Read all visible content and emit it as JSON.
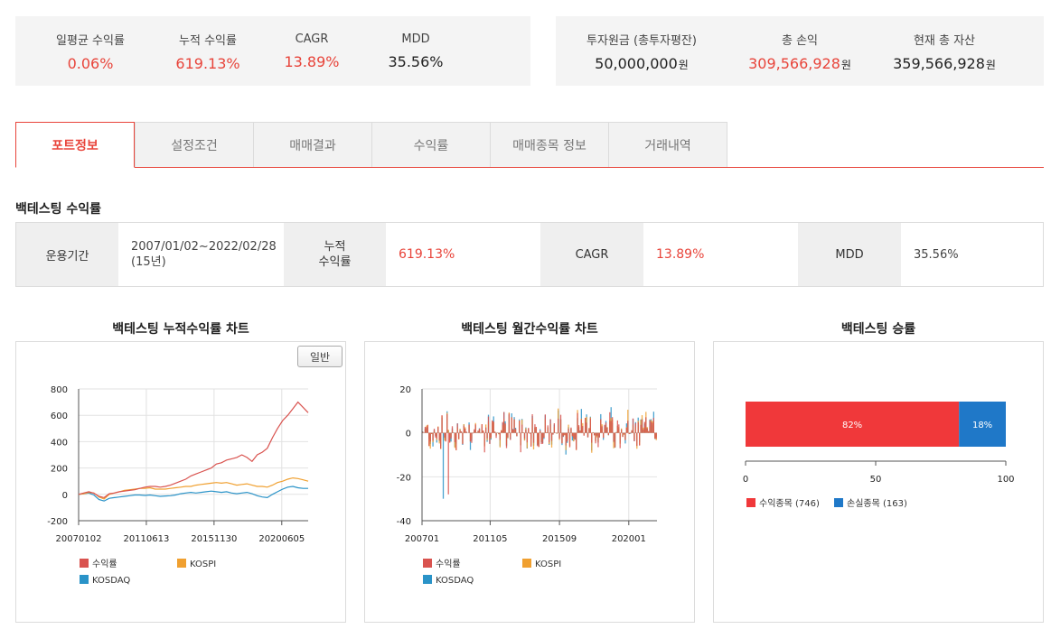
{
  "summary_left": [
    {
      "label": "일평균 수익률",
      "value": "0.06%",
      "red": true
    },
    {
      "label": "누적 수익률",
      "value": "619.13%",
      "red": true
    },
    {
      "label": "CAGR",
      "value": "13.89%",
      "red": true
    },
    {
      "label": "MDD",
      "value": "35.56%",
      "red": false
    }
  ],
  "summary_right": [
    {
      "label": "투자원금 (총투자평잔)",
      "value": "50,000,000",
      "unit": "원",
      "red": false
    },
    {
      "label": "총 손익",
      "value": "309,566,928",
      "unit": "원",
      "red": true
    },
    {
      "label": "현재 총 자산",
      "value": "359,566,928",
      "unit": "원",
      "red": false
    }
  ],
  "tabs": [
    "포트정보",
    "설정조건",
    "매매결과",
    "수익률",
    "매매종목 정보",
    "거래내역"
  ],
  "active_tab": 0,
  "section": {
    "title": "백테스팅 수익률"
  },
  "backtest_table": {
    "period_label": "운용기간",
    "period_value_line1": "2007/01/02~2022/02/28",
    "period_value_line2": "(15년)",
    "cum_label_line1": "누적",
    "cum_label_line2": "수익률",
    "cum_value": "619.13%",
    "cagr_label": "CAGR",
    "cagr_value": "13.89%",
    "mdd_label": "MDD",
    "mdd_value": "35.56%"
  },
  "colors": {
    "accent": "#e8443a",
    "returns": "#d9534f",
    "kospi": "#f0a030",
    "kosdaq": "#2a93c8",
    "win": "#f0383a",
    "loss": "#1f78c8"
  },
  "charts": [
    {
      "title": "백테스팅 누적수익률 차트",
      "button": "일반",
      "chart_data": {
        "type": "line",
        "yticks": [
          800,
          600,
          400,
          200,
          0,
          -200
        ],
        "ylim": [
          -200,
          800
        ],
        "xticks": [
          "20070102",
          "20110613",
          "20151130",
          "20200605"
        ],
        "xtick_pos": [
          0,
          0.295,
          0.59,
          0.885
        ],
        "series": [
          {
            "name": "수익률",
            "color": "#d9534f",
            "values": [
              0,
              10,
              20,
              8,
              -15,
              -25,
              5,
              10,
              20,
              25,
              30,
              35,
              45,
              55,
              60,
              60,
              55,
              60,
              70,
              85,
              100,
              115,
              140,
              155,
              170,
              185,
              200,
              230,
              240,
              260,
              270,
              280,
              300,
              280,
              250,
              300,
              320,
              350,
              430,
              500,
              560,
              600,
              650,
              700,
              660,
              620
            ]
          },
          {
            "name": "KOSPI",
            "color": "#f0a030",
            "values": [
              0,
              5,
              15,
              10,
              -20,
              -35,
              0,
              10,
              20,
              30,
              35,
              40,
              45,
              45,
              50,
              40,
              40,
              40,
              45,
              50,
              55,
              60,
              60,
              70,
              75,
              80,
              85,
              90,
              85,
              90,
              80,
              70,
              75,
              80,
              70,
              60,
              60,
              55,
              70,
              90,
              100,
              115,
              125,
              120,
              110,
              100
            ]
          },
          {
            "name": "KOSDAQ",
            "color": "#2a93c8",
            "values": [
              0,
              5,
              10,
              -5,
              -40,
              -50,
              -30,
              -25,
              -20,
              -15,
              -10,
              -5,
              -5,
              -8,
              -5,
              -10,
              -15,
              -12,
              -10,
              -5,
              5,
              10,
              15,
              10,
              15,
              20,
              25,
              20,
              15,
              20,
              10,
              5,
              10,
              15,
              5,
              -10,
              -20,
              -25,
              0,
              20,
              40,
              55,
              60,
              50,
              45,
              45
            ]
          }
        ]
      }
    },
    {
      "title": "백테스팅 월간수익률 차트",
      "chart_data": {
        "type": "bar",
        "yticks": [
          20,
          0,
          -20,
          -40
        ],
        "ylim": [
          -40,
          20
        ],
        "xticks": [
          "200701",
          "201105",
          "201509",
          "202001"
        ],
        "xtick_pos": [
          0,
          0.29,
          0.585,
          0.88
        ],
        "series": [
          {
            "name": "수익률",
            "color": "#d9534f"
          },
          {
            "name": "KOSPI",
            "color": "#f0a030"
          },
          {
            "name": "KOSDAQ",
            "color": "#2a93c8"
          }
        ]
      }
    },
    {
      "title": "백테스팅 승률",
      "chart_data": {
        "type": "bar",
        "orientation": "horizontal",
        "stacked": true,
        "values": [
          82,
          18
        ],
        "labels": [
          "82%",
          "18%"
        ],
        "xticks": [
          0,
          50,
          100
        ],
        "xlim": [
          0,
          100
        ],
        "series": [
          {
            "name": "수익종목 (746)",
            "color": "#f0383a"
          },
          {
            "name": "손실종목 (163)",
            "color": "#1f78c8"
          }
        ]
      }
    }
  ]
}
